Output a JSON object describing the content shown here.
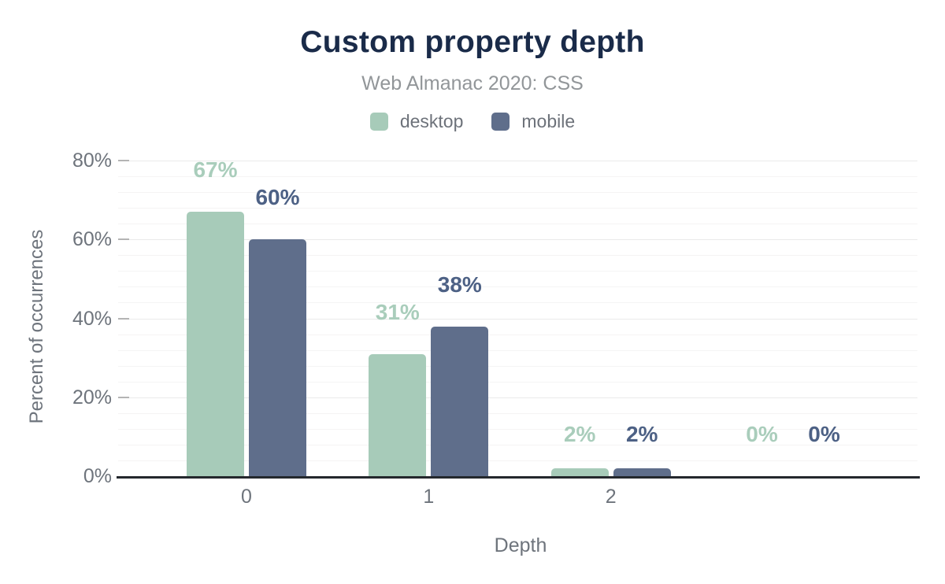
{
  "chart_data": {
    "type": "bar",
    "title": "Custom property depth",
    "subtitle": "Web Almanac 2020: CSS",
    "xlabel": "Depth",
    "ylabel": "Percent of occurrences",
    "categories": [
      "0",
      "1",
      "2",
      ""
    ],
    "series": [
      {
        "name": "desktop",
        "color": "#a7cbb9",
        "label_color": "#a9cdbb",
        "values": [
          67,
          31,
          2,
          0
        ],
        "labels": [
          "67%",
          "31%",
          "2%",
          "0%"
        ]
      },
      {
        "name": "mobile",
        "color": "#5f6e8b",
        "label_color": "#4d6185",
        "values": [
          60,
          38,
          2,
          0
        ],
        "labels": [
          "60%",
          "38%",
          "2%",
          "0%"
        ]
      }
    ],
    "ylim": [
      0,
      80
    ],
    "yticks": [
      {
        "value": 0,
        "label": "0%"
      },
      {
        "value": 20,
        "label": "20%"
      },
      {
        "value": 40,
        "label": "40%"
      },
      {
        "value": 60,
        "label": "60%"
      },
      {
        "value": 80,
        "label": "80%"
      }
    ],
    "minor_grid_step_pct": 4,
    "grid": true,
    "legend_position": "top"
  },
  "colors": {
    "title_text": "#1a2b49",
    "subtitle_text": "#929699",
    "axis_text": "#6e747c",
    "legend_text": "#6d727a",
    "axis_line": "#24282d",
    "desktop": "#a7cbb9",
    "mobile": "#5f6e8b"
  }
}
